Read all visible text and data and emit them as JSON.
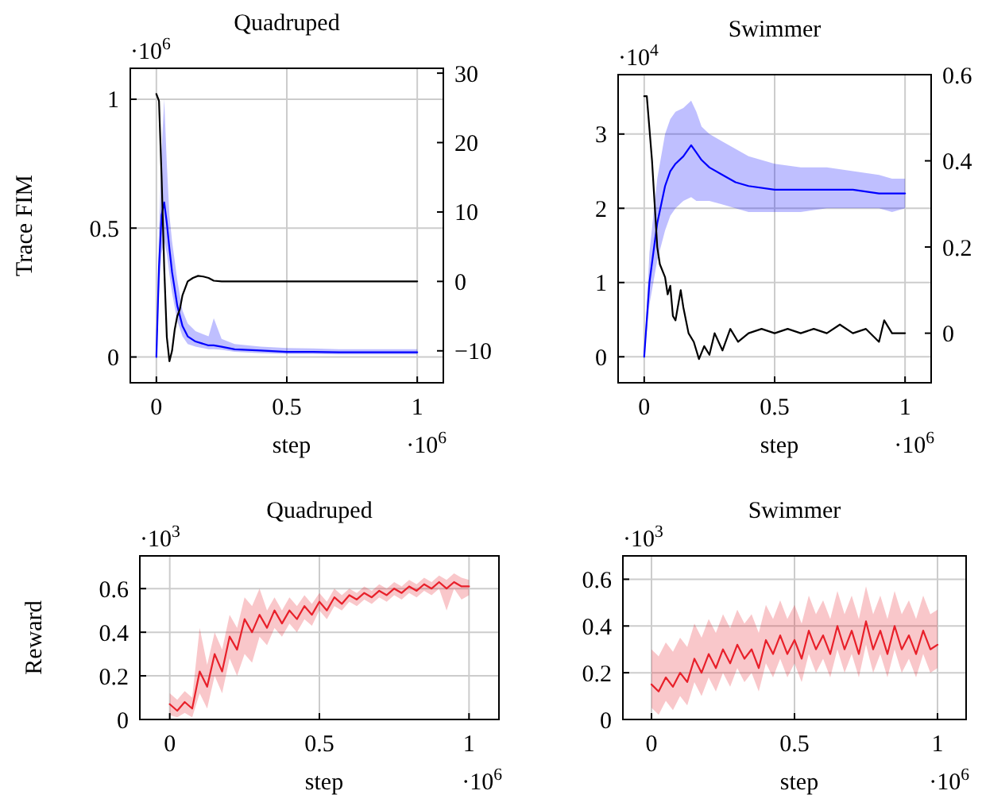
{
  "chart_data": [
    {
      "type": "line",
      "title": "Quadruped",
      "xlabel": "step",
      "ylabel": "Trace FIM",
      "annotations": [
        "·10$^{6}$",
        "·10$^{6}$"
      ],
      "xlim": [
        -0.1,
        1.1
      ],
      "xticks": [
        0,
        0.5,
        1
      ],
      "ylim": [
        -0.1,
        1.12
      ],
      "yticks": [
        0,
        0.5,
        1
      ],
      "y2lim": [
        -14.6,
        30.7
      ],
      "y2ticks": [
        {
          "value": -10,
          "label": "−10"
        },
        0,
        10,
        20,
        30
      ],
      "grid": true,
      "series": [
        {
          "color": "#0000ff",
          "x": [
            0,
            0.01,
            0.02,
            0.03,
            0.04,
            0.05,
            0.06,
            0.08,
            0.1,
            0.12,
            0.15,
            0.2,
            0.22,
            0.25,
            0.3,
            0.4,
            0.5,
            0.6,
            0.7,
            0.8,
            0.9,
            1.0
          ],
          "values": [
            0,
            0.35,
            0.55,
            0.6,
            0.52,
            0.42,
            0.33,
            0.2,
            0.12,
            0.08,
            0.06,
            0.045,
            0.045,
            0.04,
            0.03,
            0.025,
            0.02,
            0.02,
            0.018,
            0.018,
            0.018,
            0.018
          ],
          "lower": [
            0,
            0.25,
            0.4,
            0.45,
            0.4,
            0.32,
            0.25,
            0.14,
            0.08,
            0.05,
            0.04,
            0.03,
            0.03,
            0.028,
            0.02,
            0.015,
            0.012,
            0.012,
            0.01,
            0.01,
            0.01,
            0.01
          ],
          "upper": [
            0,
            0.5,
            0.8,
            1.0,
            0.75,
            0.55,
            0.45,
            0.3,
            0.18,
            0.13,
            0.1,
            0.08,
            0.15,
            0.07,
            0.05,
            0.04,
            0.035,
            0.033,
            0.03,
            0.03,
            0.03,
            0.03
          ]
        },
        {
          "color": "#000000",
          "axis": "y2",
          "x": [
            0,
            0.01,
            0.02,
            0.03,
            0.04,
            0.05,
            0.06,
            0.07,
            0.08,
            0.09,
            0.1,
            0.12,
            0.14,
            0.16,
            0.18,
            0.2,
            0.22,
            0.25,
            0.3,
            0.5,
            0.7,
            1.0
          ],
          "values": [
            27,
            26,
            15,
            2,
            -8,
            -11.5,
            -10,
            -7,
            -5,
            -4,
            -2,
            0,
            0.5,
            0.8,
            0.7,
            0.5,
            0.1,
            0,
            0,
            0,
            0,
            0
          ]
        }
      ]
    },
    {
      "type": "line",
      "title": "Swimmer",
      "xlabel": "step",
      "annotations": [
        "·10$^{4}$",
        "·10$^{6}$"
      ],
      "xlim": [
        -0.1,
        1.1
      ],
      "xticks": [
        0,
        0.5,
        1
      ],
      "ylim": [
        -0.35,
        3.8
      ],
      "yticks": [
        0,
        1,
        2,
        3
      ],
      "y2lim": [
        -0.115,
        0.6
      ],
      "y2ticks": [
        0,
        0.2,
        0.4,
        0.6
      ],
      "grid": true,
      "series": [
        {
          "color": "#0000ff",
          "x": [
            0,
            0.02,
            0.05,
            0.08,
            0.1,
            0.12,
            0.15,
            0.18,
            0.2,
            0.22,
            0.25,
            0.3,
            0.35,
            0.4,
            0.5,
            0.6,
            0.7,
            0.8,
            0.9,
            0.95,
            1.0
          ],
          "values": [
            0,
            1.0,
            1.8,
            2.3,
            2.5,
            2.6,
            2.7,
            2.85,
            2.75,
            2.65,
            2.55,
            2.45,
            2.35,
            2.3,
            2.25,
            2.25,
            2.25,
            2.25,
            2.2,
            2.2,
            2.2
          ],
          "lower": [
            0,
            0.7,
            1.3,
            1.7,
            1.9,
            2.0,
            2.1,
            2.15,
            2.1,
            2.1,
            2.1,
            2.05,
            2.0,
            1.95,
            1.95,
            1.95,
            2.0,
            2.0,
            2.0,
            1.95,
            2.0
          ],
          "upper": [
            0,
            1.4,
            2.4,
            3.0,
            3.2,
            3.3,
            3.35,
            3.45,
            3.3,
            3.1,
            3.0,
            2.9,
            2.8,
            2.7,
            2.6,
            2.55,
            2.55,
            2.5,
            2.45,
            2.4,
            2.4
          ]
        },
        {
          "color": "#000000",
          "axis": "y2",
          "x": [
            0,
            0.01,
            0.03,
            0.05,
            0.06,
            0.08,
            0.09,
            0.1,
            0.11,
            0.12,
            0.14,
            0.15,
            0.17,
            0.19,
            0.21,
            0.23,
            0.25,
            0.27,
            0.3,
            0.33,
            0.36,
            0.4,
            0.45,
            0.5,
            0.55,
            0.6,
            0.65,
            0.7,
            0.75,
            0.8,
            0.85,
            0.9,
            0.92,
            0.95,
            1.0
          ],
          "values": [
            0.55,
            0.55,
            0.4,
            0.2,
            0.16,
            0.13,
            0.09,
            0.11,
            0.04,
            0.03,
            0.1,
            0.06,
            0.0,
            -0.02,
            -0.06,
            -0.03,
            -0.05,
            0.0,
            -0.04,
            0.01,
            -0.02,
            0.0,
            0.01,
            0.0,
            0.01,
            0.0,
            0.01,
            0.0,
            0.02,
            0.0,
            0.01,
            -0.02,
            0.03,
            0.0,
            0.0
          ]
        }
      ]
    },
    {
      "type": "line",
      "title": "Quadruped",
      "xlabel": "step",
      "ylabel": "Reward",
      "annotations": [
        "·10$^{3}$",
        "·10$^{6}$"
      ],
      "xlim": [
        -0.1,
        1.1
      ],
      "xticks": [
        0,
        0.5,
        1
      ],
      "ylim": [
        0,
        0.75
      ],
      "yticks": [
        0,
        0.2,
        0.4,
        0.6
      ],
      "grid": true,
      "series": [
        {
          "color": "#e8202a",
          "x": [
            0,
            0.025,
            0.05,
            0.075,
            0.1,
            0.125,
            0.15,
            0.175,
            0.2,
            0.225,
            0.25,
            0.275,
            0.3,
            0.325,
            0.35,
            0.375,
            0.4,
            0.425,
            0.45,
            0.475,
            0.5,
            0.525,
            0.55,
            0.575,
            0.6,
            0.625,
            0.65,
            0.675,
            0.7,
            0.725,
            0.75,
            0.775,
            0.8,
            0.825,
            0.85,
            0.875,
            0.9,
            0.925,
            0.95,
            0.975,
            1.0
          ],
          "values": [
            0.07,
            0.04,
            0.08,
            0.05,
            0.22,
            0.15,
            0.3,
            0.22,
            0.38,
            0.32,
            0.46,
            0.4,
            0.48,
            0.42,
            0.5,
            0.44,
            0.5,
            0.46,
            0.52,
            0.48,
            0.54,
            0.5,
            0.56,
            0.53,
            0.57,
            0.55,
            0.58,
            0.56,
            0.59,
            0.57,
            0.6,
            0.58,
            0.61,
            0.59,
            0.62,
            0.6,
            0.63,
            0.6,
            0.63,
            0.61,
            0.61
          ],
          "lower": [
            0.02,
            0.01,
            0.03,
            0.01,
            0.12,
            0.05,
            0.2,
            0.12,
            0.28,
            0.2,
            0.3,
            0.26,
            0.38,
            0.34,
            0.42,
            0.38,
            0.44,
            0.4,
            0.46,
            0.43,
            0.5,
            0.46,
            0.52,
            0.5,
            0.54,
            0.52,
            0.55,
            0.53,
            0.56,
            0.54,
            0.57,
            0.55,
            0.58,
            0.56,
            0.59,
            0.57,
            0.6,
            0.5,
            0.6,
            0.55,
            0.57
          ],
          "upper": [
            0.12,
            0.09,
            0.13,
            0.1,
            0.42,
            0.25,
            0.4,
            0.32,
            0.48,
            0.42,
            0.56,
            0.52,
            0.6,
            0.5,
            0.56,
            0.5,
            0.56,
            0.52,
            0.57,
            0.53,
            0.58,
            0.54,
            0.6,
            0.57,
            0.6,
            0.58,
            0.61,
            0.59,
            0.62,
            0.6,
            0.63,
            0.61,
            0.64,
            0.62,
            0.65,
            0.63,
            0.66,
            0.64,
            0.67,
            0.65,
            0.64
          ]
        }
      ]
    },
    {
      "type": "line",
      "title": "Swimmer",
      "xlabel": "step",
      "annotations": [
        "·10$^{3}$",
        "·10$^{6}$"
      ],
      "xlim": [
        -0.1,
        1.1
      ],
      "xticks": [
        0,
        0.5,
        1
      ],
      "ylim": [
        0,
        0.7
      ],
      "yticks": [
        0,
        0.2,
        0.4,
        0.6
      ],
      "grid": true,
      "series": [
        {
          "color": "#e8202a",
          "x": [
            0,
            0.025,
            0.05,
            0.075,
            0.1,
            0.125,
            0.15,
            0.175,
            0.2,
            0.225,
            0.25,
            0.275,
            0.3,
            0.325,
            0.35,
            0.375,
            0.4,
            0.425,
            0.45,
            0.475,
            0.5,
            0.525,
            0.55,
            0.575,
            0.6,
            0.625,
            0.65,
            0.675,
            0.7,
            0.725,
            0.75,
            0.775,
            0.8,
            0.825,
            0.85,
            0.875,
            0.9,
            0.925,
            0.95,
            0.975,
            1.0
          ],
          "values": [
            0.15,
            0.12,
            0.18,
            0.14,
            0.2,
            0.16,
            0.26,
            0.2,
            0.28,
            0.22,
            0.3,
            0.24,
            0.32,
            0.26,
            0.3,
            0.22,
            0.34,
            0.28,
            0.36,
            0.28,
            0.34,
            0.26,
            0.38,
            0.3,
            0.36,
            0.28,
            0.4,
            0.3,
            0.38,
            0.28,
            0.42,
            0.3,
            0.38,
            0.28,
            0.4,
            0.3,
            0.36,
            0.28,
            0.38,
            0.3,
            0.32
          ],
          "lower": [
            0.05,
            0.02,
            0.08,
            0.04,
            0.1,
            0.06,
            0.16,
            0.1,
            0.18,
            0.12,
            0.2,
            0.14,
            0.22,
            0.16,
            0.2,
            0.12,
            0.24,
            0.18,
            0.26,
            0.18,
            0.24,
            0.16,
            0.28,
            0.2,
            0.26,
            0.18,
            0.3,
            0.2,
            0.28,
            0.18,
            0.32,
            0.2,
            0.28,
            0.18,
            0.3,
            0.2,
            0.26,
            0.18,
            0.28,
            0.2,
            0.22
          ],
          "upper": [
            0.3,
            0.27,
            0.33,
            0.29,
            0.35,
            0.31,
            0.41,
            0.35,
            0.43,
            0.37,
            0.45,
            0.39,
            0.47,
            0.41,
            0.45,
            0.37,
            0.49,
            0.43,
            0.51,
            0.43,
            0.49,
            0.41,
            0.53,
            0.45,
            0.51,
            0.43,
            0.55,
            0.45,
            0.53,
            0.43,
            0.57,
            0.45,
            0.53,
            0.43,
            0.55,
            0.45,
            0.51,
            0.43,
            0.53,
            0.45,
            0.47
          ]
        }
      ]
    }
  ]
}
